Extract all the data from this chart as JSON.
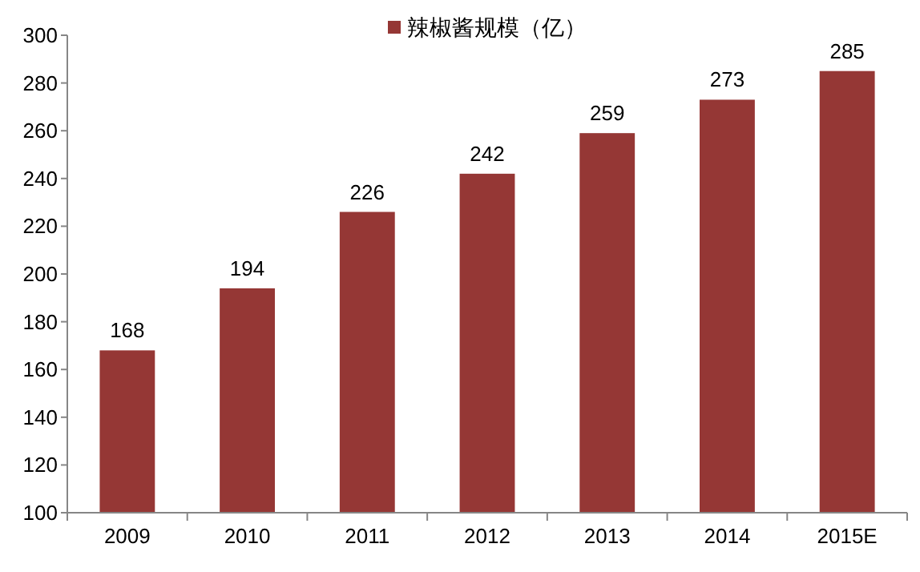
{
  "chart_data": {
    "type": "bar",
    "categories": [
      "2009",
      "2010",
      "2011",
      "2012",
      "2013",
      "2014",
      "2015E"
    ],
    "series": [
      {
        "name": "辣椒酱规模（亿）",
        "color": "#953735",
        "values": [
          168,
          194,
          226,
          242,
          259,
          273,
          285
        ]
      }
    ],
    "ylim": [
      100,
      300
    ],
    "yticks": [
      100,
      120,
      140,
      160,
      180,
      200,
      220,
      240,
      260,
      280,
      300
    ],
    "data_labels": true,
    "legend": "top",
    "grid": false
  }
}
